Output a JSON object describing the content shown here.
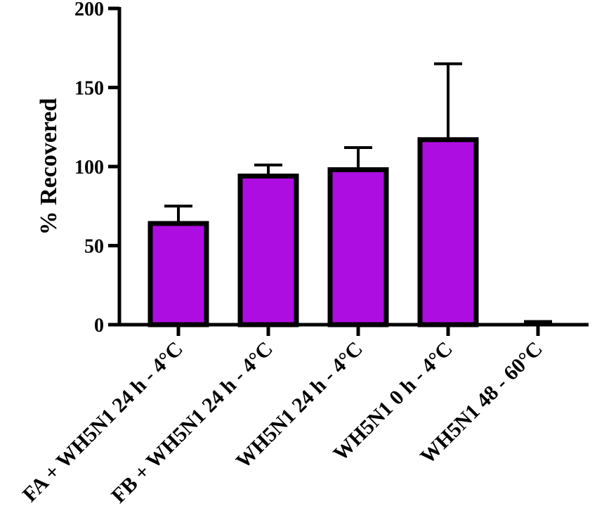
{
  "chart_data": {
    "type": "bar",
    "title": "",
    "xlabel": "",
    "ylabel": "% Recovered",
    "ylim": [
      0,
      200
    ],
    "yticks": [
      0,
      50,
      100,
      150,
      200
    ],
    "categories": [
      "FA + WH5N1 24 h - 4°C",
      "FB + WH5N1 24 h - 4°C",
      "WH5N1 24 h - 4°C",
      "WH5N1 0 h - 4°C",
      "WH5N1 48 - 60°C"
    ],
    "values": [
      64,
      94,
      98,
      117,
      0
    ],
    "error_upper": [
      75,
      101,
      112,
      165,
      2
    ],
    "bar_color": "#ae0de2",
    "edge_color": "#000000",
    "grid": false
  }
}
